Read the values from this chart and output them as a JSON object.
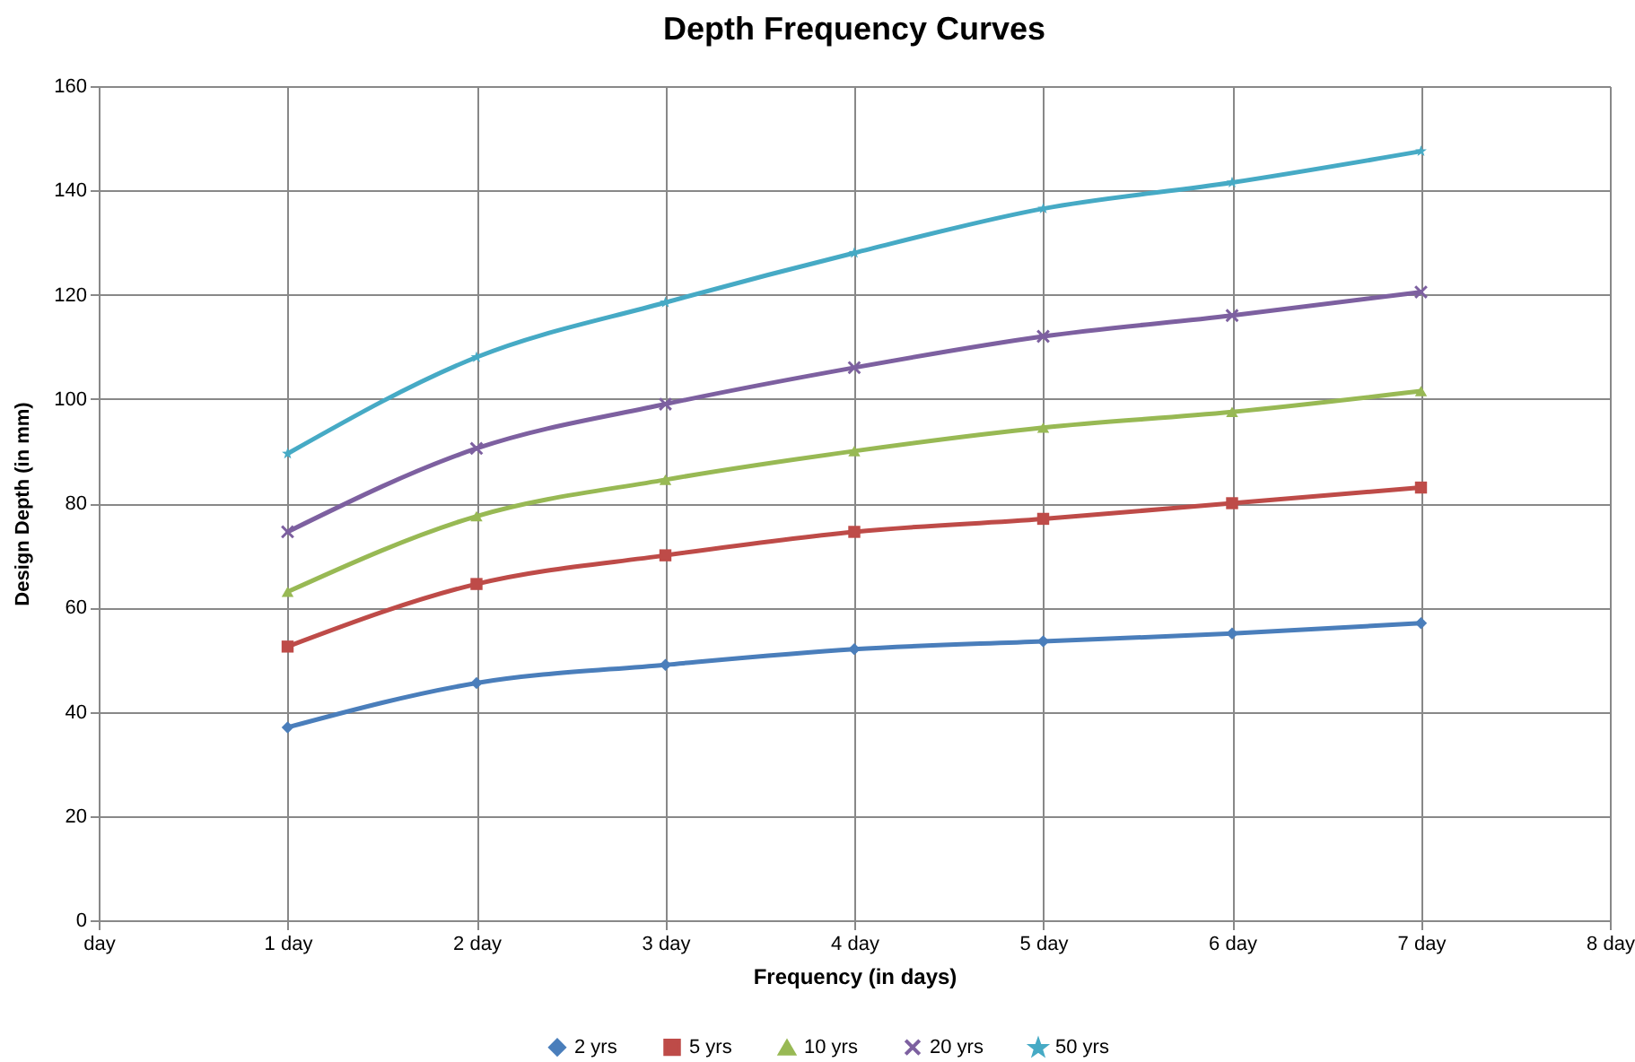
{
  "chart_data": {
    "type": "line",
    "title": "Depth Frequency Curves",
    "xlabel": "Frequency (in days)",
    "ylabel": "Design Depth (in mm)",
    "x": [
      1,
      2,
      3,
      4,
      5,
      6,
      7
    ],
    "xlim": [
      0,
      8
    ],
    "xticks": [
      {
        "value": 0,
        "label": "day"
      },
      {
        "value": 1,
        "label": "1 day"
      },
      {
        "value": 2,
        "label": "2 day"
      },
      {
        "value": 3,
        "label": "3 day"
      },
      {
        "value": 4,
        "label": "4 day"
      },
      {
        "value": 5,
        "label": "5 day"
      },
      {
        "value": 6,
        "label": "6 day"
      },
      {
        "value": 7,
        "label": "7 day"
      },
      {
        "value": 8,
        "label": "8 day"
      }
    ],
    "ylim": [
      0,
      160
    ],
    "yticks": [
      0,
      20,
      40,
      60,
      80,
      100,
      120,
      140,
      160
    ],
    "grid": true,
    "legend": "bottom",
    "series": [
      {
        "name": "2 yrs",
        "color": "#4a7ebb",
        "marker": "diamond",
        "values": [
          37,
          45.5,
          49,
          52,
          53.5,
          55,
          57
        ]
      },
      {
        "name": "5 yrs",
        "color": "#be4b48",
        "marker": "square",
        "values": [
          52.5,
          64.5,
          70,
          74.5,
          77,
          80,
          83
        ]
      },
      {
        "name": "10 yrs",
        "color": "#98b954",
        "marker": "triangle",
        "values": [
          63,
          77.5,
          84.5,
          90,
          94.5,
          97.5,
          101.5
        ]
      },
      {
        "name": "20 yrs",
        "color": "#7d60a0",
        "marker": "cross",
        "values": [
          74.5,
          90.5,
          99,
          106,
          112,
          116,
          120.5
        ]
      },
      {
        "name": "50 yrs",
        "color": "#46aac5",
        "marker": "star",
        "values": [
          89.5,
          108,
          118.5,
          128,
          136.5,
          141.5,
          147.5
        ]
      }
    ]
  }
}
